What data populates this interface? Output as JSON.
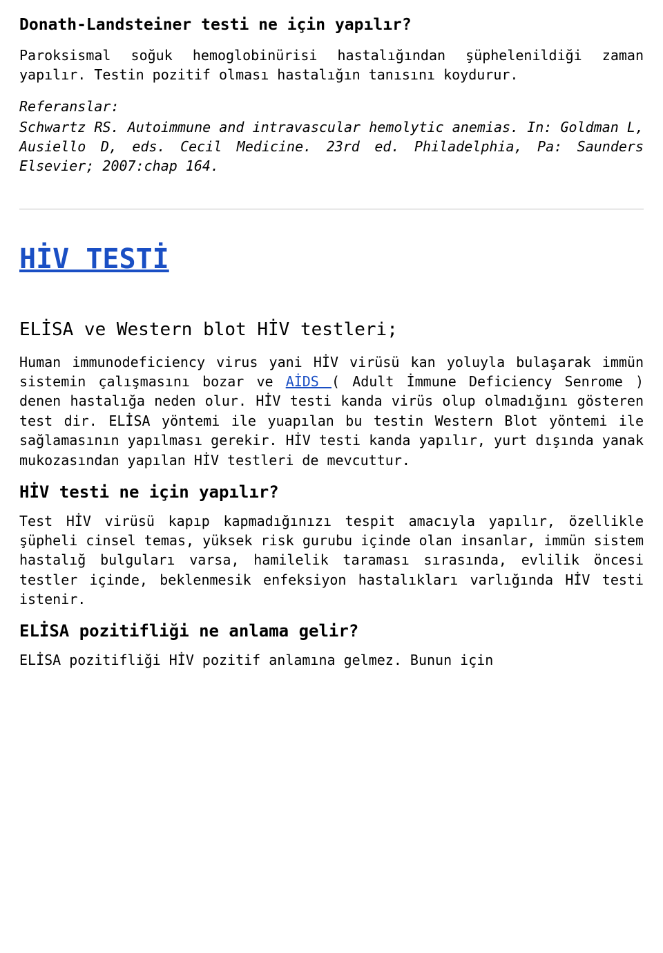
{
  "section1": {
    "heading": "Donath-Landsteiner testi ne için yapılır?",
    "p1": "Paroksismal soğuk hemoglobinürisi hastalığından şüphelenildiği zaman yapılır. Testin pozitif olması hastalığın tanısını koydurur.",
    "ref_label": "Referanslar:",
    "ref_text": "Schwartz RS. Autoimmune and intravascular hemolytic anemias. In: Goldman L, Ausiello D, eds. Cecil Medicine. 23rd ed. Philadelphia, Pa: Saunders Elsevier; 2007:chap 164."
  },
  "section2": {
    "title_link": "HİV TESTİ",
    "sub_heading": "ELİSA ve Western blot HİV testleri;",
    "p1_pre": "Human immunodeficiency virus yani HİV virüsü kan yoluyla bulaşarak immün sistemin çalışmasını bozar ve ",
    "p1_link": "AİDS ",
    "p1_post": "( Adult İmmune Deficiency Senrome ) denen hastalığa neden olur. HİV testi kanda virüs olup olmadığını gösteren test dir. ELİSA yöntemi ile yuapılan bu testin Western Blot yöntemi ile sağlamasının yapılması gerekir. HİV testi kanda yapılır, yurt dışında yanak mukozasından yapılan HİV testleri de mevcuttur.",
    "h3a": "HİV testi ne için yapılır?",
    "p2": "Test HİV virüsü kapıp kapmadığınızı tespit amacıyla yapılır, özellikle şüpheli cinsel temas, yüksek risk gurubu içinde olan insanlar, immün sistem hastalığ bulguları varsa, hamilelik taraması sırasında, evlilik öncesi testler içinde, beklenmesik enfeksiyon hastalıkları varlığında HİV testi istenir.",
    "h3b": "ELİSA pozitifliği ne anlama gelir?",
    "p3": "ELİSA pozitifliği HİV pozitif anlamına gelmez. Bunun için"
  },
  "colors": {
    "text": "#000000",
    "link": "#1a4fc4",
    "bg": "#ffffff",
    "hr": "#c0c0c0"
  }
}
